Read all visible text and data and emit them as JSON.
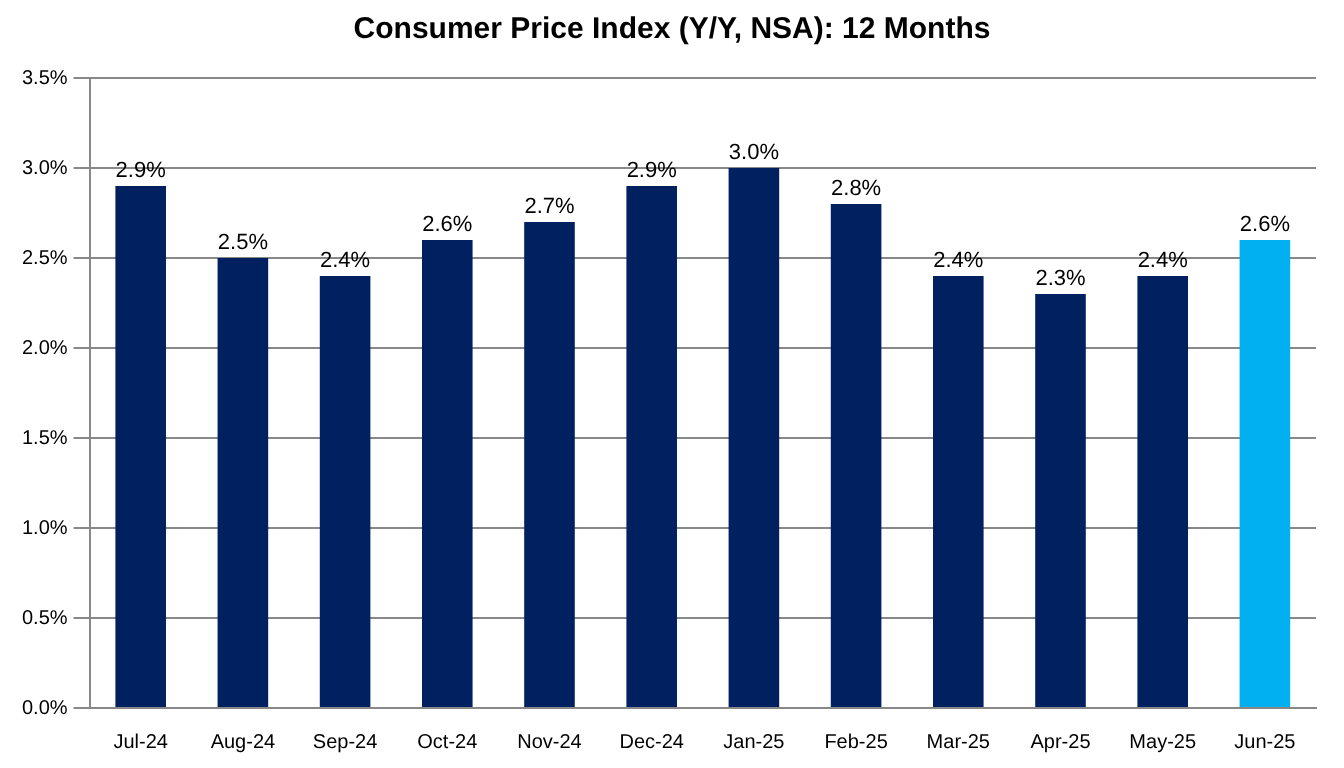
{
  "chart_data": {
    "type": "bar",
    "title": "Consumer Price Index (Y/Y, NSA): 12 Months",
    "categories": [
      "Jul-24",
      "Aug-24",
      "Sep-24",
      "Oct-24",
      "Nov-24",
      "Dec-24",
      "Jan-25",
      "Feb-25",
      "Mar-25",
      "Apr-25",
      "May-25",
      "Jun-25"
    ],
    "values": [
      2.9,
      2.5,
      2.4,
      2.6,
      2.7,
      2.9,
      3.0,
      2.8,
      2.4,
      2.3,
      2.4,
      2.6
    ],
    "colors": [
      "#002060",
      "#002060",
      "#002060",
      "#002060",
      "#002060",
      "#002060",
      "#002060",
      "#002060",
      "#002060",
      "#002060",
      "#002060",
      "#00b0f0"
    ],
    "value_labels": [
      "2.9%",
      "2.5%",
      "2.4%",
      "2.6%",
      "2.7%",
      "2.9%",
      "3.0%",
      "2.8%",
      "2.4%",
      "2.3%",
      "2.4%",
      "2.6%"
    ],
    "ylim": [
      0,
      3.5
    ],
    "yticks": [
      {
        "value": 0,
        "label": "0.0%"
      },
      {
        "value": 0.5,
        "label": "0.5%"
      },
      {
        "value": 1,
        "label": "1.0%"
      },
      {
        "value": 1.5,
        "label": "1.5%"
      },
      {
        "value": 2,
        "label": "2.0%"
      },
      {
        "value": 2.5,
        "label": "2.5%"
      },
      {
        "value": 3,
        "label": "3.0%"
      },
      {
        "value": 3.5,
        "label": "3.5%"
      }
    ],
    "grid": "y",
    "legend": false
  }
}
